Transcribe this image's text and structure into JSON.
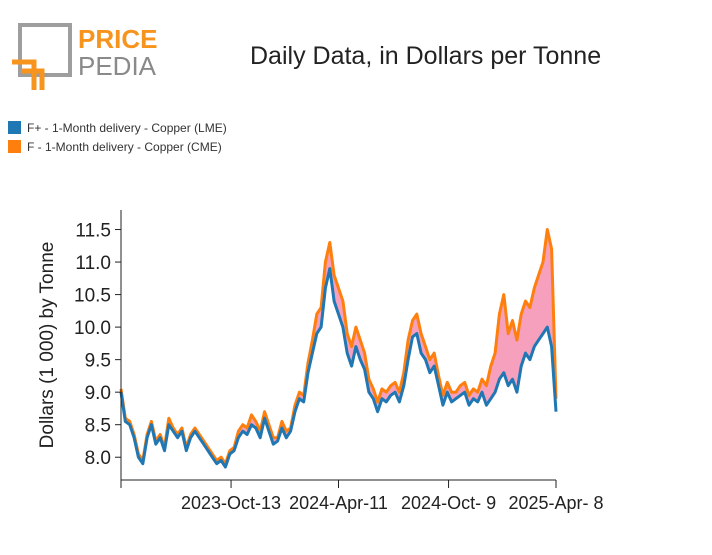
{
  "logo": {
    "line1": "PRICE",
    "line2": "PEDIA",
    "orange": "#f7941d",
    "gray": "#8a8a8a"
  },
  "chart_data": {
    "type": "line",
    "title": "Daily Data, in Dollars per Tonne",
    "xlabel": "",
    "ylabel": "Dollars (1 000) by Tonne",
    "ylim": [
      7.65,
      11.8
    ],
    "yticks": [
      8.0,
      8.5,
      9.0,
      9.5,
      10.0,
      10.5,
      11.0,
      11.5
    ],
    "ytick_labels": [
      "8.0",
      "8.5",
      "9.0",
      "9.5",
      "10.0",
      "10.5",
      "11.0",
      "11.5"
    ],
    "xlim": [
      0,
      1
    ],
    "xticks": [
      0,
      0.253,
      0.5,
      0.753,
      1.0
    ],
    "xtick_labels": [
      "",
      "2023-Oct-13",
      "2024-Apr-11",
      "2024-Oct- 9",
      "2025-Apr- 8"
    ],
    "fill_between_color": "#f48fb1",
    "series": [
      {
        "name": "F+ - 1-Month delivery - Copper (LME)",
        "color": "#1f77b4",
        "x": [
          0.0,
          0.01,
          0.02,
          0.03,
          0.04,
          0.05,
          0.06,
          0.07,
          0.08,
          0.09,
          0.1,
          0.11,
          0.12,
          0.13,
          0.14,
          0.15,
          0.16,
          0.17,
          0.18,
          0.19,
          0.2,
          0.21,
          0.22,
          0.23,
          0.24,
          0.25,
          0.26,
          0.27,
          0.28,
          0.29,
          0.3,
          0.31,
          0.32,
          0.33,
          0.34,
          0.35,
          0.36,
          0.37,
          0.38,
          0.39,
          0.4,
          0.41,
          0.42,
          0.43,
          0.44,
          0.45,
          0.46,
          0.47,
          0.48,
          0.49,
          0.5,
          0.51,
          0.52,
          0.53,
          0.54,
          0.55,
          0.56,
          0.57,
          0.58,
          0.59,
          0.6,
          0.61,
          0.62,
          0.63,
          0.64,
          0.65,
          0.66,
          0.67,
          0.68,
          0.69,
          0.7,
          0.71,
          0.72,
          0.73,
          0.74,
          0.75,
          0.76,
          0.77,
          0.78,
          0.79,
          0.8,
          0.81,
          0.82,
          0.83,
          0.84,
          0.85,
          0.86,
          0.87,
          0.88,
          0.89,
          0.9,
          0.91,
          0.92,
          0.93,
          0.94,
          0.95,
          0.96,
          0.97,
          0.98,
          0.99,
          1.0
        ],
        "values": [
          9.0,
          8.55,
          8.5,
          8.3,
          8.0,
          7.9,
          8.3,
          8.5,
          8.2,
          8.3,
          8.1,
          8.5,
          8.4,
          8.3,
          8.4,
          8.1,
          8.3,
          8.4,
          8.3,
          8.2,
          8.1,
          8.0,
          7.9,
          7.95,
          7.85,
          8.05,
          8.1,
          8.3,
          8.4,
          8.35,
          8.5,
          8.45,
          8.3,
          8.6,
          8.4,
          8.2,
          8.25,
          8.45,
          8.3,
          8.4,
          8.7,
          8.9,
          8.85,
          9.3,
          9.6,
          9.9,
          10.0,
          10.6,
          10.9,
          10.4,
          10.2,
          10.0,
          9.6,
          9.4,
          9.7,
          9.5,
          9.35,
          9.0,
          8.9,
          8.7,
          8.9,
          8.85,
          8.95,
          9.0,
          8.85,
          9.1,
          9.5,
          9.85,
          9.9,
          9.6,
          9.5,
          9.3,
          9.4,
          9.1,
          8.8,
          9.0,
          8.85,
          8.9,
          8.95,
          9.0,
          8.8,
          8.9,
          8.85,
          9.0,
          8.8,
          8.9,
          9.0,
          9.2,
          9.3,
          9.1,
          9.2,
          9.0,
          9.4,
          9.6,
          9.5,
          9.7,
          9.8,
          9.9,
          10.0,
          9.7,
          8.7
        ]
      },
      {
        "name": "F - 1-Month delivery - Copper (CME)",
        "color": "#ff7f0e",
        "x": [
          0.0,
          0.01,
          0.02,
          0.03,
          0.04,
          0.05,
          0.06,
          0.07,
          0.08,
          0.09,
          0.1,
          0.11,
          0.12,
          0.13,
          0.14,
          0.15,
          0.16,
          0.17,
          0.18,
          0.19,
          0.2,
          0.21,
          0.22,
          0.23,
          0.24,
          0.25,
          0.26,
          0.27,
          0.28,
          0.29,
          0.3,
          0.31,
          0.32,
          0.33,
          0.34,
          0.35,
          0.36,
          0.37,
          0.38,
          0.39,
          0.4,
          0.41,
          0.42,
          0.43,
          0.44,
          0.45,
          0.46,
          0.47,
          0.48,
          0.49,
          0.5,
          0.51,
          0.52,
          0.53,
          0.54,
          0.55,
          0.56,
          0.57,
          0.58,
          0.59,
          0.6,
          0.61,
          0.62,
          0.63,
          0.64,
          0.65,
          0.66,
          0.67,
          0.68,
          0.69,
          0.7,
          0.71,
          0.72,
          0.73,
          0.74,
          0.75,
          0.76,
          0.77,
          0.78,
          0.79,
          0.8,
          0.81,
          0.82,
          0.83,
          0.84,
          0.85,
          0.86,
          0.87,
          0.88,
          0.89,
          0.9,
          0.91,
          0.92,
          0.93,
          0.94,
          0.95,
          0.96,
          0.97,
          0.98,
          0.99,
          1.0
        ],
        "values": [
          9.05,
          8.6,
          8.55,
          8.35,
          8.05,
          7.95,
          8.35,
          8.55,
          8.25,
          8.35,
          8.15,
          8.6,
          8.45,
          8.35,
          8.45,
          8.15,
          8.35,
          8.45,
          8.35,
          8.25,
          8.15,
          8.05,
          7.95,
          8.0,
          7.9,
          8.1,
          8.15,
          8.4,
          8.5,
          8.45,
          8.65,
          8.55,
          8.4,
          8.7,
          8.5,
          8.3,
          8.3,
          8.55,
          8.4,
          8.45,
          8.8,
          9.0,
          8.95,
          9.45,
          9.8,
          10.2,
          10.3,
          11.0,
          11.3,
          10.8,
          10.6,
          10.4,
          9.9,
          9.7,
          10.0,
          9.8,
          9.6,
          9.2,
          9.05,
          8.85,
          9.05,
          9.0,
          9.1,
          9.15,
          9.0,
          9.3,
          9.8,
          10.1,
          10.2,
          9.9,
          9.7,
          9.5,
          9.6,
          9.25,
          8.95,
          9.15,
          9.0,
          9.0,
          9.1,
          9.15,
          8.95,
          9.05,
          9.0,
          9.2,
          9.1,
          9.4,
          9.6,
          10.2,
          10.5,
          9.9,
          10.1,
          9.8,
          10.2,
          10.4,
          10.3,
          10.6,
          10.8,
          11.0,
          11.5,
          11.2,
          8.9
        ]
      }
    ]
  }
}
